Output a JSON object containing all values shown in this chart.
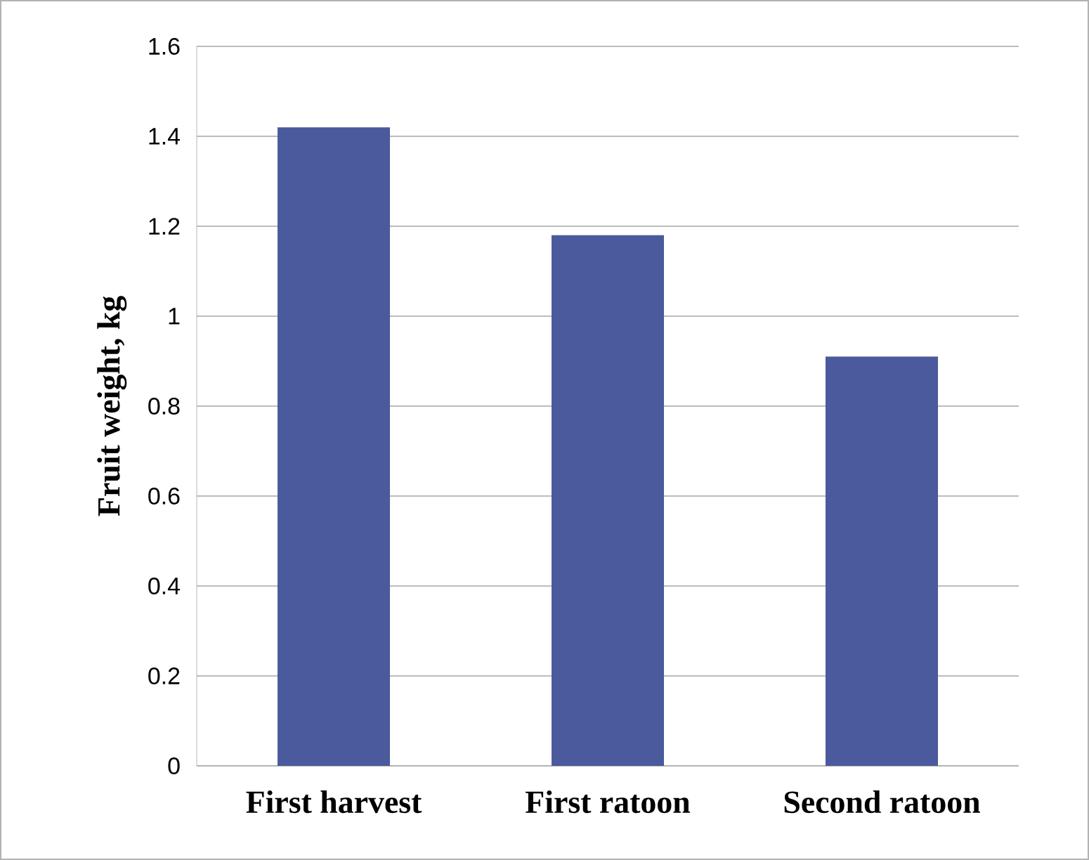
{
  "chart_data": {
    "type": "bar",
    "ylabel": "Fruit weight, kg",
    "categories": [
      "First harvest",
      "First ratoon",
      "Second ratoon"
    ],
    "values": [
      1.42,
      1.18,
      0.91
    ],
    "color": "#4a5a9c",
    "ylim": [
      0,
      1.6
    ],
    "yticks": [
      0,
      0.2,
      0.4,
      0.6,
      0.8,
      1,
      1.2,
      1.4,
      1.6
    ],
    "grid": "y"
  }
}
